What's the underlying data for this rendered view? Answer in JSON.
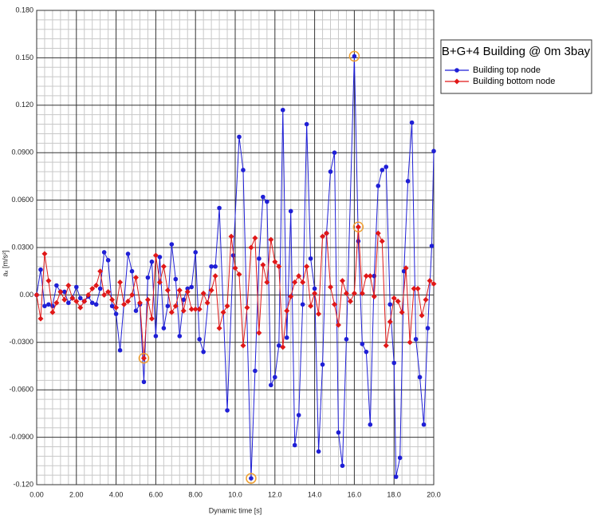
{
  "chart_data": {
    "type": "line",
    "x_label": "Dynamic time [s]",
    "y_label": "aₓ [m/s²]",
    "legend_title": "B+G+4 Building @ 0m 3bay",
    "xlim": [
      0,
      20
    ],
    "ylim": [
      -0.12,
      0.18
    ],
    "xticks": [
      {
        "value": 0,
        "label": "0.00"
      },
      {
        "value": 2,
        "label": "2.00"
      },
      {
        "value": 4,
        "label": "4.00"
      },
      {
        "value": 6,
        "label": "6.00"
      },
      {
        "value": 8,
        "label": "8.00"
      },
      {
        "value": 10,
        "label": "10.0"
      },
      {
        "value": 12,
        "label": "12.0"
      },
      {
        "value": 14,
        "label": "14.0"
      },
      {
        "value": 16,
        "label": "16.0"
      },
      {
        "value": 18,
        "label": "18.0"
      },
      {
        "value": 20,
        "label": "20.0"
      }
    ],
    "yticks": [
      {
        "value": 0.18,
        "label": "0.180"
      },
      {
        "value": 0.15,
        "label": "0.150"
      },
      {
        "value": 0.12,
        "label": "0.120"
      },
      {
        "value": 0.09,
        "label": "0.0900"
      },
      {
        "value": 0.06,
        "label": "0.0600"
      },
      {
        "value": 0.03,
        "label": "0.0300"
      },
      {
        "value": 0,
        "label": "0.00"
      },
      {
        "value": -0.03,
        "label": "-0.0300"
      },
      {
        "value": -0.06,
        "label": "-0.0600"
      },
      {
        "value": -0.09,
        "label": "-0.0900"
      },
      {
        "value": -0.12,
        "label": "-0.120"
      }
    ],
    "grid": true,
    "legend": "right",
    "highlight_color": "#f0a030",
    "series": [
      {
        "name": "Building top node",
        "color": "#1f1fd6",
        "marker": "circle",
        "x": [
          0.0,
          0.2,
          0.4,
          0.6,
          0.8,
          1.0,
          1.2,
          1.4,
          1.6,
          1.8,
          2.0,
          2.2,
          2.4,
          2.6,
          2.8,
          3.0,
          3.2,
          3.4,
          3.6,
          3.8,
          4.0,
          4.2,
          4.6,
          4.8,
          5.0,
          5.2,
          5.4,
          5.6,
          5.8,
          6.0,
          6.2,
          6.4,
          6.6,
          6.8,
          7.0,
          7.2,
          7.4,
          7.6,
          7.8,
          8.0,
          8.2,
          8.4,
          8.8,
          9.0,
          9.2,
          9.6,
          9.9,
          10.2,
          10.4,
          10.8,
          11.0,
          11.2,
          11.4,
          11.6,
          11.8,
          12.0,
          12.2,
          12.4,
          12.6,
          12.8,
          13.0,
          13.2,
          13.4,
          13.6,
          13.8,
          14.0,
          14.2,
          14.4,
          14.6,
          14.8,
          15.0,
          15.2,
          15.4,
          15.6,
          16.0,
          16.2,
          16.4,
          16.6,
          16.8,
          17.0,
          17.2,
          17.4,
          17.6,
          17.8,
          18.0,
          18.1,
          18.3,
          18.5,
          18.7,
          18.9,
          19.1,
          19.3,
          19.5,
          19.7,
          19.9,
          20.0
        ],
        "values": [
          0.0,
          0.016,
          -0.007,
          -0.006,
          -0.007,
          0.006,
          0.002,
          0.002,
          -0.005,
          -0.002,
          0.005,
          -0.002,
          -0.004,
          -0.001,
          -0.005,
          -0.006,
          0.004,
          0.027,
          0.022,
          -0.007,
          -0.012,
          -0.035,
          0.026,
          0.015,
          -0.01,
          -0.006,
          -0.055,
          0.011,
          0.021,
          -0.026,
          0.024,
          -0.021,
          -0.007,
          0.032,
          0.01,
          -0.026,
          -0.003,
          0.004,
          0.005,
          0.027,
          -0.028,
          -0.036,
          0.018,
          0.018,
          0.055,
          -0.073,
          0.025,
          0.1,
          0.079,
          -0.116,
          -0.048,
          0.023,
          0.062,
          0.059,
          -0.057,
          -0.052,
          -0.032,
          0.117,
          -0.027,
          0.053,
          -0.095,
          -0.076,
          -0.006,
          0.108,
          0.023,
          0.004,
          -0.099,
          -0.044,
          0.039,
          0.078,
          0.09,
          -0.087,
          -0.108,
          -0.028,
          0.151,
          0.034,
          -0.031,
          -0.036,
          -0.082,
          0.012,
          0.069,
          0.079,
          0.081,
          -0.006,
          -0.043,
          -0.115,
          -0.103,
          0.015,
          0.072,
          0.109,
          -0.028,
          -0.052,
          -0.082,
          -0.021,
          0.031,
          0.091
        ],
        "highlighted": [
          49,
          74
        ]
      },
      {
        "name": "Building bottom node",
        "color": "#e01818",
        "marker": "diamond",
        "x": [
          0.0,
          0.2,
          0.4,
          0.6,
          0.8,
          1.0,
          1.2,
          1.4,
          1.6,
          1.8,
          2.0,
          2.2,
          2.4,
          2.6,
          2.8,
          3.0,
          3.2,
          3.4,
          3.6,
          3.8,
          4.0,
          4.2,
          4.4,
          4.6,
          4.8,
          5.0,
          5.2,
          5.4,
          5.6,
          5.8,
          6.0,
          6.2,
          6.4,
          6.6,
          6.8,
          7.0,
          7.2,
          7.4,
          7.6,
          7.8,
          8.0,
          8.2,
          8.4,
          8.6,
          8.8,
          9.0,
          9.2,
          9.4,
          9.6,
          9.8,
          10.0,
          10.2,
          10.4,
          10.6,
          10.8,
          11.0,
          11.2,
          11.4,
          11.6,
          11.8,
          12.0,
          12.2,
          12.4,
          12.6,
          12.8,
          13.0,
          13.2,
          13.4,
          13.6,
          13.8,
          14.0,
          14.2,
          14.4,
          14.6,
          14.8,
          15.0,
          15.2,
          15.4,
          15.6,
          15.8,
          16.0,
          16.2,
          16.4,
          16.6,
          16.8,
          17.0,
          17.2,
          17.4,
          17.6,
          17.8,
          18.0,
          18.2,
          18.4,
          18.6,
          18.8,
          19.0,
          19.2,
          19.4,
          19.6,
          19.8,
          20.0
        ],
        "values": [
          0.0,
          -0.015,
          0.026,
          0.009,
          -0.011,
          -0.005,
          0.002,
          -0.003,
          0.006,
          -0.002,
          -0.004,
          -0.008,
          -0.004,
          0.0,
          0.004,
          0.006,
          0.015,
          0.0,
          0.002,
          -0.003,
          -0.008,
          0.008,
          -0.006,
          -0.004,
          0.0,
          0.011,
          -0.005,
          -0.04,
          -0.003,
          -0.015,
          0.025,
          0.008,
          0.018,
          0.003,
          -0.011,
          -0.007,
          0.003,
          -0.01,
          0.002,
          -0.009,
          -0.009,
          -0.009,
          0.001,
          -0.005,
          0.003,
          0.012,
          -0.021,
          -0.011,
          -0.007,
          0.037,
          0.017,
          0.013,
          -0.032,
          -0.008,
          0.03,
          0.036,
          -0.024,
          0.019,
          0.008,
          0.035,
          0.021,
          0.018,
          -0.033,
          -0.01,
          -0.001,
          0.008,
          0.012,
          0.008,
          0.018,
          -0.007,
          0.001,
          -0.012,
          0.037,
          0.039,
          0.005,
          -0.006,
          -0.019,
          0.009,
          0.001,
          -0.004,
          0.001,
          0.043,
          0.001,
          0.012,
          0.012,
          -0.001,
          0.039,
          0.034,
          -0.032,
          -0.017,
          -0.002,
          -0.004,
          -0.011,
          0.017,
          -0.03,
          0.004,
          0.004,
          -0.013,
          -0.003,
          0.009,
          0.007
        ],
        "highlighted": [
          27,
          81
        ]
      }
    ]
  }
}
